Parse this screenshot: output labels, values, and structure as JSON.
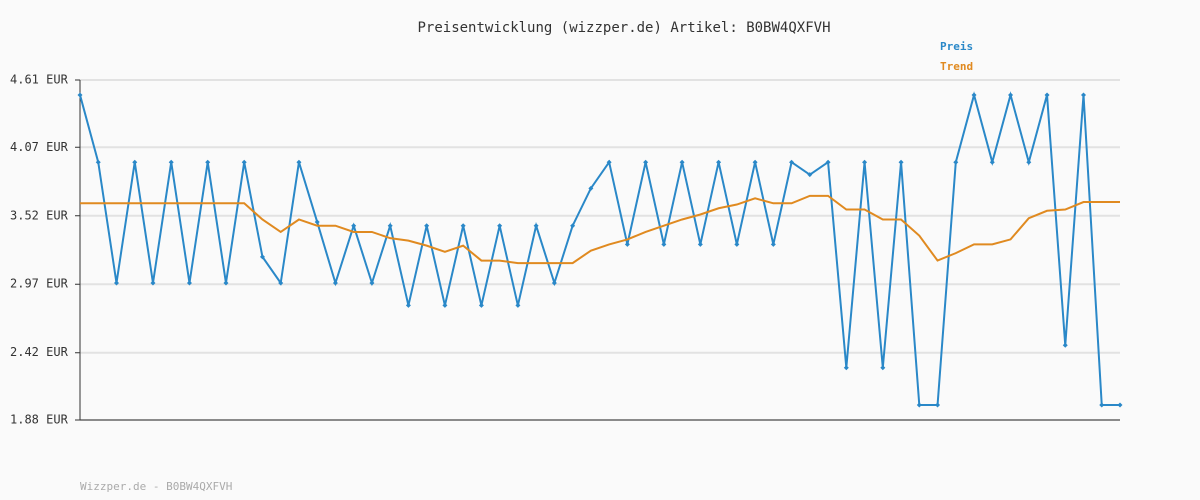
{
  "chart_data": {
    "type": "line",
    "title": "Preisentwicklung (wizzper.de) Artikel: B0BW4QXFVH",
    "footer": "Wizzper.de - B0BW4QXFVH",
    "categories": [
      null,
      null,
      null,
      null,
      null,
      null,
      null,
      null,
      null,
      null,
      null,
      null,
      null,
      null,
      null,
      null,
      null,
      null,
      null,
      null,
      null,
      null,
      null,
      null,
      null,
      null,
      null,
      null,
      null,
      null,
      null,
      null,
      null,
      null,
      null,
      null,
      null,
      null,
      null,
      null,
      null,
      null,
      null,
      null,
      null,
      null,
      null,
      null,
      null,
      null,
      null,
      null,
      null,
      null,
      null,
      null,
      null,
      null
    ],
    "series": [
      {
        "name": "Preis",
        "color": "#2a88c8",
        "markers": true,
        "values": [
          4.49,
          3.95,
          2.98,
          3.95,
          2.98,
          3.95,
          2.98,
          3.95,
          2.98,
          3.95,
          3.19,
          2.98,
          3.95,
          3.47,
          2.98,
          3.44,
          2.98,
          3.44,
          2.8,
          3.44,
          2.8,
          3.44,
          2.8,
          3.44,
          2.8,
          3.44,
          2.98,
          3.44,
          3.74,
          3.95,
          3.29,
          3.95,
          3.29,
          3.95,
          3.29,
          3.95,
          3.29,
          3.95,
          3.29,
          3.95,
          3.85,
          3.95,
          2.3,
          3.95,
          2.3,
          3.95,
          2.0,
          2.0,
          3.95,
          4.49,
          3.95,
          4.49,
          3.95,
          4.49,
          2.48,
          4.49,
          2.0,
          2.0
        ]
      },
      {
        "name": "Trend",
        "color": "#e08a20",
        "markers": false,
        "values": [
          3.62,
          3.62,
          3.62,
          3.62,
          3.62,
          3.62,
          3.62,
          3.62,
          3.62,
          3.62,
          3.49,
          3.39,
          3.49,
          3.44,
          3.44,
          3.39,
          3.39,
          3.34,
          3.32,
          3.28,
          3.23,
          3.28,
          3.16,
          3.16,
          3.14,
          3.14,
          3.14,
          3.14,
          3.24,
          3.29,
          3.33,
          3.39,
          3.44,
          3.49,
          3.53,
          3.58,
          3.61,
          3.66,
          3.62,
          3.62,
          3.68,
          3.68,
          3.57,
          3.57,
          3.49,
          3.49,
          3.36,
          3.16,
          3.22,
          3.29,
          3.29,
          3.33,
          3.5,
          3.56,
          3.57,
          3.63,
          3.63,
          3.63
        ]
      }
    ],
    "ylim": [
      1.88,
      4.61
    ],
    "yticks": [
      {
        "value": 4.61,
        "label": "4.61 EUR"
      },
      {
        "value": 4.07,
        "label": "4.07 EUR"
      },
      {
        "value": 3.52,
        "label": "3.52 EUR"
      },
      {
        "value": 2.97,
        "label": "2.97 EUR"
      },
      {
        "value": 2.42,
        "label": "2.42 EUR"
      },
      {
        "value": 1.88,
        "label": "1.88 EUR"
      }
    ],
    "grid": true,
    "legend": "top-right"
  }
}
